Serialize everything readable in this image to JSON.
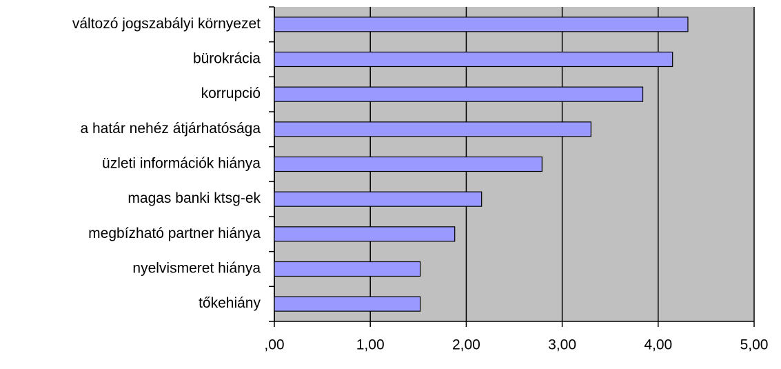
{
  "chart_data": {
    "type": "bar",
    "orientation": "horizontal",
    "categories": [
      "változó jogszabályi környezet",
      "bürokrácia",
      "korrupció",
      "a határ nehéz átjárhatósága",
      "üzleti információk hiánya",
      "magas banki ktsg-ek",
      "megbízható partner hiánya",
      "nyelvismeret hiánya",
      "tőkehiány"
    ],
    "values": [
      4.31,
      4.15,
      3.84,
      3.3,
      2.79,
      2.16,
      1.88,
      1.52,
      1.52
    ],
    "color": "#9999ff",
    "xlim": [
      0,
      5
    ],
    "xticks": [
      {
        "value": 0,
        "label": ",00"
      },
      {
        "value": 1,
        "label": "1,00"
      },
      {
        "value": 2,
        "label": "2,00"
      },
      {
        "value": 3,
        "label": "3,00"
      },
      {
        "value": 4,
        "label": "4,00"
      },
      {
        "value": 5,
        "label": "5,00"
      }
    ],
    "grid": true
  }
}
